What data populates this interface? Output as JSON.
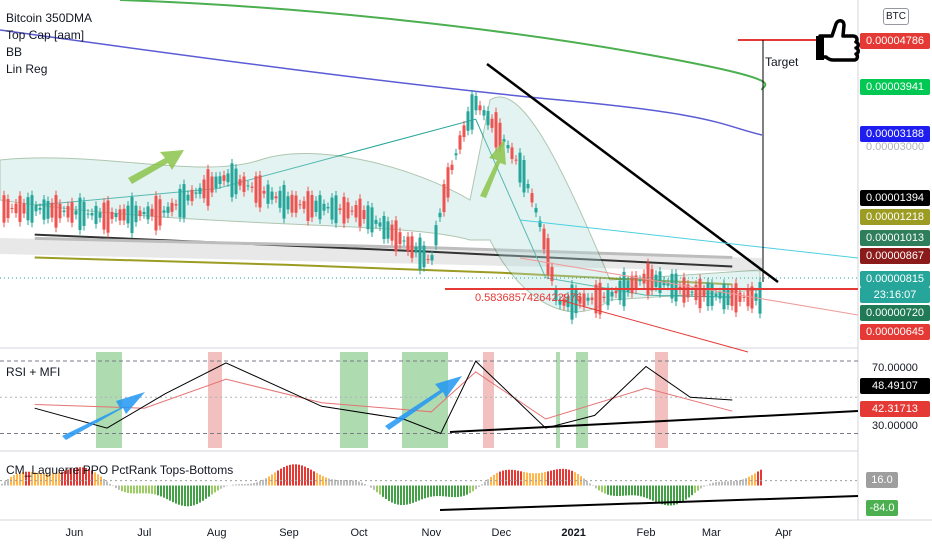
{
  "symbol": "BTC",
  "legend_main": [
    "Bitcoin 350DMA",
    "Top Cap [aam]",
    "BB",
    "Lin Reg"
  ],
  "legend_rsi": "RSI + MFI",
  "legend_ppo": "CM_Laguerre PPO PctRank Tops-Bottoms",
  "annotations": {
    "target": "Target",
    "support_value": "0.5836857426422976",
    "hidden_tick": "0.00003000"
  },
  "colors": {
    "green_ma": "#4caf50",
    "blue_ma": "#5b5bd6",
    "olive_ma": "#9c9c22",
    "red": "#e53935",
    "teal": "#26a69a"
  },
  "price_tags": [
    {
      "value": "0.00004786",
      "bg": "#e53935",
      "fg": "#ffffff"
    },
    {
      "value": "0.00003941",
      "bg": "#00c853",
      "fg": "#ffffff"
    },
    {
      "value": "0.00003188",
      "bg": "#1e1ef0",
      "fg": "#ffffff"
    },
    {
      "value": "0.00001394",
      "bg": "#000000",
      "fg": "#ffffff"
    },
    {
      "value": "0.00001218",
      "bg": "#9c9c22",
      "fg": "#ffffff"
    },
    {
      "value": "0.00001013",
      "bg": "#2e7d5b",
      "fg": "#ffffff"
    },
    {
      "value": "0.00000867",
      "bg": "#8b1a1a",
      "fg": "#ffffff"
    },
    {
      "value": "0.00000815",
      "bg": "#26a69a",
      "fg": "#ffffff"
    },
    {
      "value": "23:16:07",
      "bg": "#26a69a",
      "fg": "#ffffff"
    },
    {
      "value": "0.00000720",
      "bg": "#1f7a55",
      "fg": "#ffffff"
    },
    {
      "value": "0.00000645",
      "bg": "#e53935",
      "fg": "#ffffff"
    }
  ],
  "rsi_tags": [
    {
      "value": "70.00000",
      "bg": "#ffffff",
      "fg": "#131722"
    },
    {
      "value": "48.49107",
      "bg": "#000000",
      "fg": "#ffffff"
    },
    {
      "value": "42.31713",
      "bg": "#e53935",
      "fg": "#ffffff"
    },
    {
      "value": "30.00000",
      "bg": "#ffffff",
      "fg": "#131722"
    }
  ],
  "ppo_tags": [
    {
      "value": "16.0",
      "bg": "#9e9e9e",
      "fg": "#ffffff"
    },
    {
      "value": "-84.0",
      "bg": "#4caf50",
      "fg": "#ffffff"
    }
  ],
  "x_axis": [
    "Jun",
    "Jul",
    "Aug",
    "Sep",
    "Oct",
    "Nov",
    "Dec",
    "2021",
    "Feb",
    "Mar",
    "Apr"
  ],
  "chart_data": {
    "type": "line",
    "title": "",
    "xlabel": "",
    "ylabel": "",
    "x_ticks": [
      "Jun",
      "Jul",
      "Aug",
      "Sep",
      "Oct",
      "Nov",
      "Dec",
      "2021",
      "Feb",
      "Mar",
      "Apr"
    ],
    "price_ylim": [
      5.8e-06,
      5.5e-05
    ],
    "price_y_scale": "log",
    "series": [
      {
        "name": "Bitcoin 350DMA",
        "dates": [
          "2020-05-15",
          "2020-11-01",
          "2021-03-10"
        ],
        "values": [
          1.22e-05,
          1.09e-05,
          9.9e-06
        ]
      },
      {
        "name": "Top Cap [aam]",
        "dates": [
          "2020-05-15",
          "2020-09-01",
          "2020-12-01",
          "2021-03-10"
        ],
        "values": [
          1.05e-05,
          1e-05,
          9.5e-06,
          8.8e-06
        ]
      },
      {
        "name": "Lin Reg",
        "dates": [
          "2020-05-15",
          "2020-11-01",
          "2021-03-10"
        ],
        "values": [
          1.19e-05,
          1.12e-05,
          1.05e-05
        ]
      },
      {
        "name": "BB",
        "dates": [
          "2020-05-15",
          "2020-08-01",
          "2020-11-20",
          "2020-12-20",
          "2021-02-01",
          "2021-03-10"
        ],
        "values": [
          1.48e-05,
          1.65e-05,
          2.6e-05,
          9.2e-06,
          8.2e-06,
          8.1e-06
        ]
      }
    ],
    "price_sample": {
      "dates": [
        "2020-05-15",
        "2020-06-15",
        "2020-07-10",
        "2020-08-05",
        "2020-09-01",
        "2020-10-01",
        "2020-11-01",
        "2020-11-20",
        "2020-12-10",
        "2020-12-25",
        "2021-01-15",
        "2021-02-01",
        "2021-02-20",
        "2021-03-10"
      ],
      "values": [
        1.45e-05,
        1.38e-05,
        1.42e-05,
        1.78e-05,
        1.5e-05,
        1.42e-05,
        1.02e-05,
        2.9e-05,
        1.85e-05,
        7.8e-06,
        8.1e-06,
        9.2e-06,
        8.4e-06,
        8.1e-06
      ]
    },
    "annotation_lines": {
      "target_level": 4.786e-05,
      "support_level": 7.7e-06
    },
    "rsi": {
      "ylim": [
        22,
        75
      ],
      "levels": [
        30,
        70
      ],
      "dates": [
        "2020-05-15",
        "2020-06-15",
        "2020-07-10",
        "2020-08-05",
        "2020-09-15",
        "2020-10-20",
        "2020-11-05",
        "2020-11-20",
        "2020-12-20",
        "2021-01-10",
        "2021-02-01",
        "2021-02-20",
        "2021-03-10"
      ],
      "values": [
        44,
        33,
        52,
        69,
        45,
        38,
        30,
        70,
        33,
        40,
        67,
        50,
        48.49
      ]
    },
    "mfi": {
      "dates": [
        "2020-05-15",
        "2020-07-01",
        "2020-08-05",
        "2020-09-15",
        "2020-11-01",
        "2020-11-20",
        "2020-12-20",
        "2021-02-01",
        "2021-03-10"
      ],
      "values": [
        46,
        44,
        60,
        47,
        42,
        64,
        38,
        55,
        42.32
      ]
    },
    "ppo": {
      "ylim": [
        -100,
        100
      ],
      "levels": [
        16,
        -84
      ]
    }
  }
}
